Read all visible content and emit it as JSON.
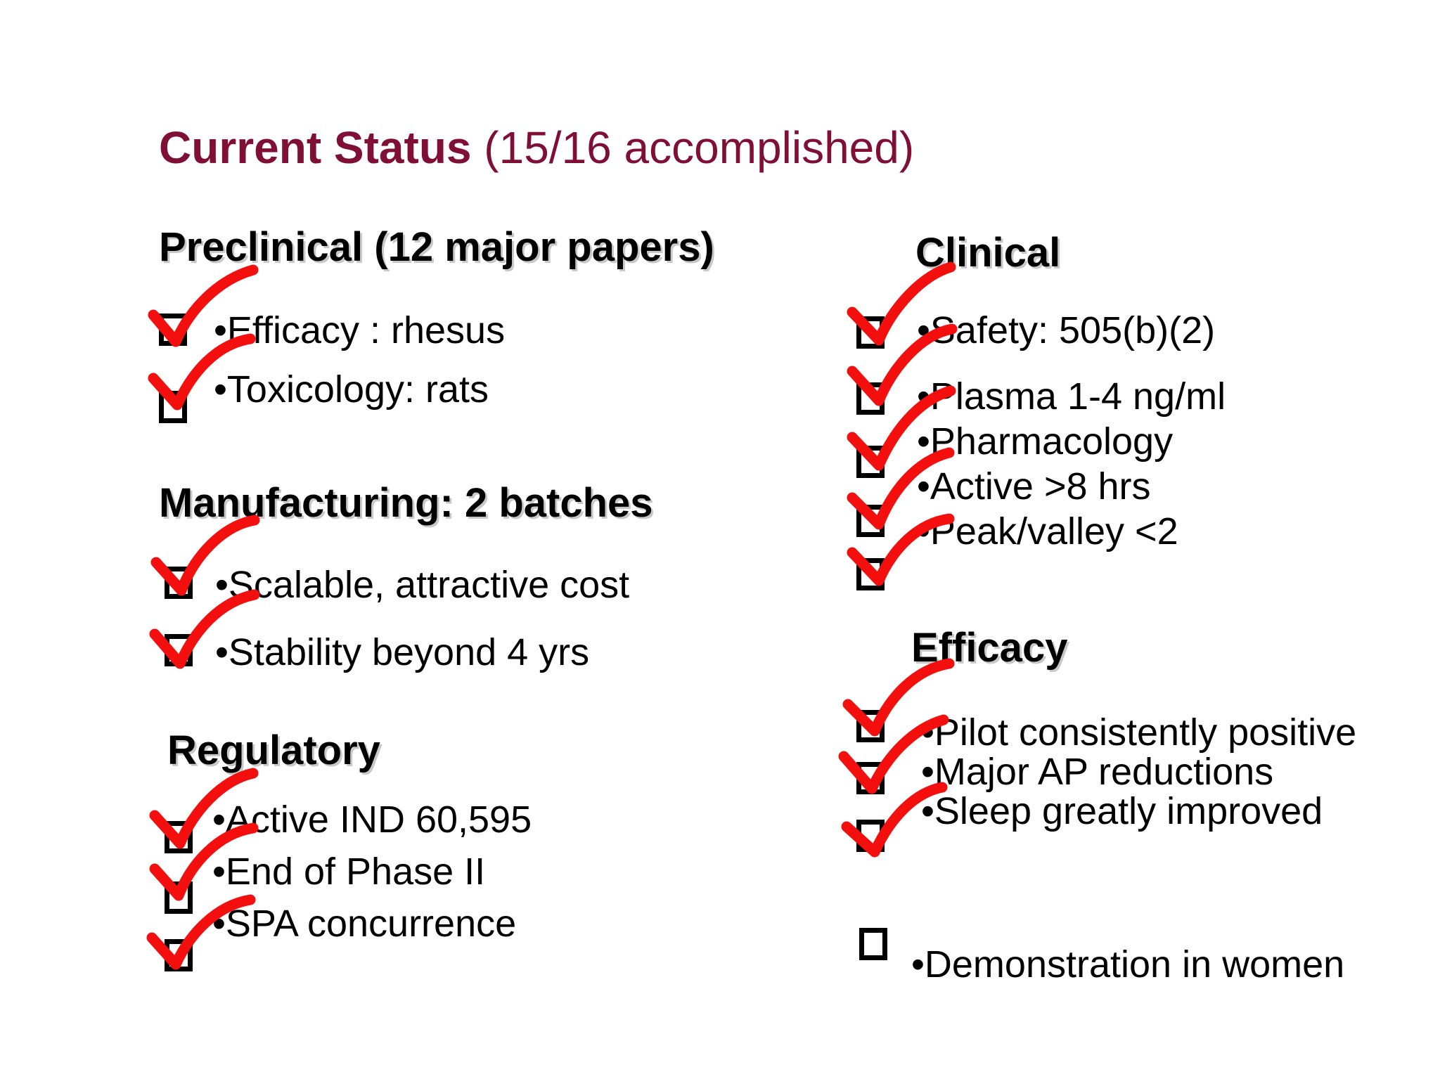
{
  "title": {
    "bold": "Current Status",
    "rest": "(15/16 accomplished)"
  },
  "sections": {
    "preclinical": {
      "heading": "Preclinical (12 major papers)",
      "items": [
        "•Efficacy : rhesus",
        "•Toxicology: rats"
      ]
    },
    "manufacturing": {
      "heading": "Manufacturing: 2 batches",
      "items": [
        "•Scalable, attractive cost",
        "•Stability beyond 4 yrs"
      ]
    },
    "regulatory": {
      "heading": "Regulatory",
      "items": [
        "•Active IND 60,595",
        "•End of Phase II",
        "•SPA concurrence"
      ]
    },
    "clinical": {
      "heading": "Clinical",
      "items": [
        "•Safety: 505(b)(2)",
        "•Plasma 1-4 ng/ml",
        "•Pharmacology",
        "•Active >8 hrs",
        "•Peak/valley <2"
      ]
    },
    "efficacy": {
      "heading": "Efficacy",
      "items": [
        "•Pilot consistently positive",
        "•Major AP reductions",
        "•Sleep greatly improved",
        "•Demonstration in women"
      ]
    }
  },
  "status": {
    "accomplished": 15,
    "total": 16
  },
  "colors": {
    "title": "#7f1034",
    "checkmark": "#f40f0f",
    "text": "#000000"
  },
  "icons": {
    "checkbox": "checkbox-icon",
    "checkmark": "checkmark-icon"
  }
}
